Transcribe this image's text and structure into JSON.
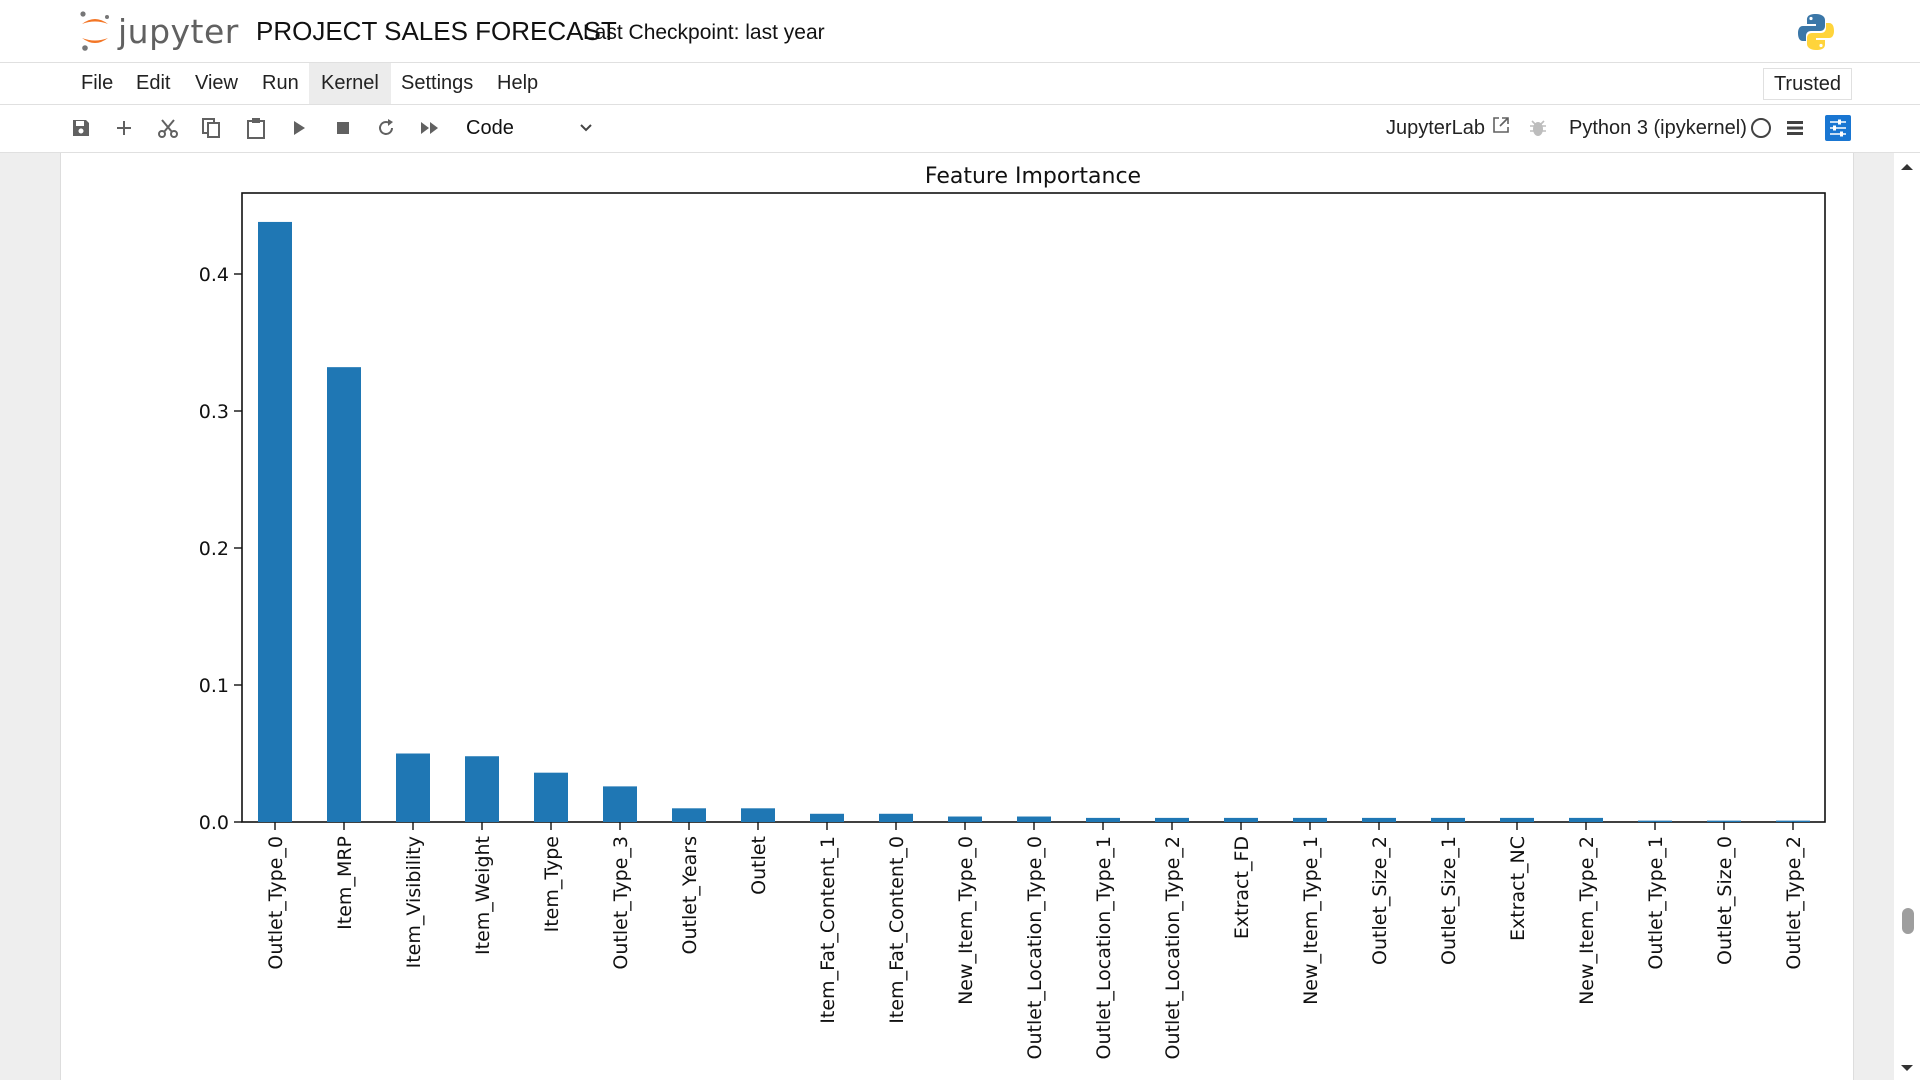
{
  "app": {
    "logo_text": "jupyter",
    "notebook_title": "PROJECT SALES FORECAST",
    "checkpoint": "Last Checkpoint: last year"
  },
  "menu": {
    "items": [
      "File",
      "Edit",
      "View",
      "Run",
      "Kernel",
      "Settings",
      "Help"
    ],
    "active": "Kernel",
    "trusted_label": "Trusted"
  },
  "toolbar": {
    "buttons": [
      "save-icon",
      "plus-icon",
      "cut-icon",
      "copy-icon",
      "paste-icon",
      "run-icon",
      "stop-icon",
      "restart-icon",
      "fast-forward-icon"
    ],
    "cell_type": "Code",
    "jupyterlab_label": "JupyterLab",
    "kernel_name": "Python 3 (ipykernel)"
  },
  "colors": {
    "bar": "#1f77b4",
    "accent": "#1976d2",
    "jupyter_orange": "#f37626"
  },
  "chart_data": {
    "type": "bar",
    "title": "Feature Importance",
    "xlabel": "",
    "ylabel": "",
    "ylim": [
      0,
      0.46
    ],
    "yticks": [
      "0.0",
      "0.1",
      "0.2",
      "0.3",
      "0.4"
    ],
    "ytick_values": [
      0.0,
      0.1,
      0.2,
      0.3,
      0.4
    ],
    "grid": false,
    "categories": [
      "Outlet_Type_0",
      "Item_MRP",
      "Item_Visibility",
      "Item_Weight",
      "Item_Type",
      "Outlet_Type_3",
      "Outlet_Years",
      "Outlet",
      "Item_Fat_Content_1",
      "Item_Fat_Content_0",
      "New_Item_Type_0",
      "Outlet_Location_Type_0",
      "Outlet_Location_Type_1",
      "Outlet_Location_Type_2",
      "Extract_FD",
      "New_Item_Type_1",
      "Outlet_Size_2",
      "Outlet_Size_1",
      "Extract_NC",
      "New_Item_Type_2",
      "Outlet_Type_1",
      "Outlet_Size_0",
      "Outlet_Type_2"
    ],
    "values": [
      0.438,
      0.332,
      0.05,
      0.048,
      0.036,
      0.026,
      0.01,
      0.01,
      0.006,
      0.006,
      0.004,
      0.004,
      0.003,
      0.003,
      0.003,
      0.003,
      0.003,
      0.003,
      0.003,
      0.003,
      0.001,
      0.001,
      0.001
    ]
  }
}
